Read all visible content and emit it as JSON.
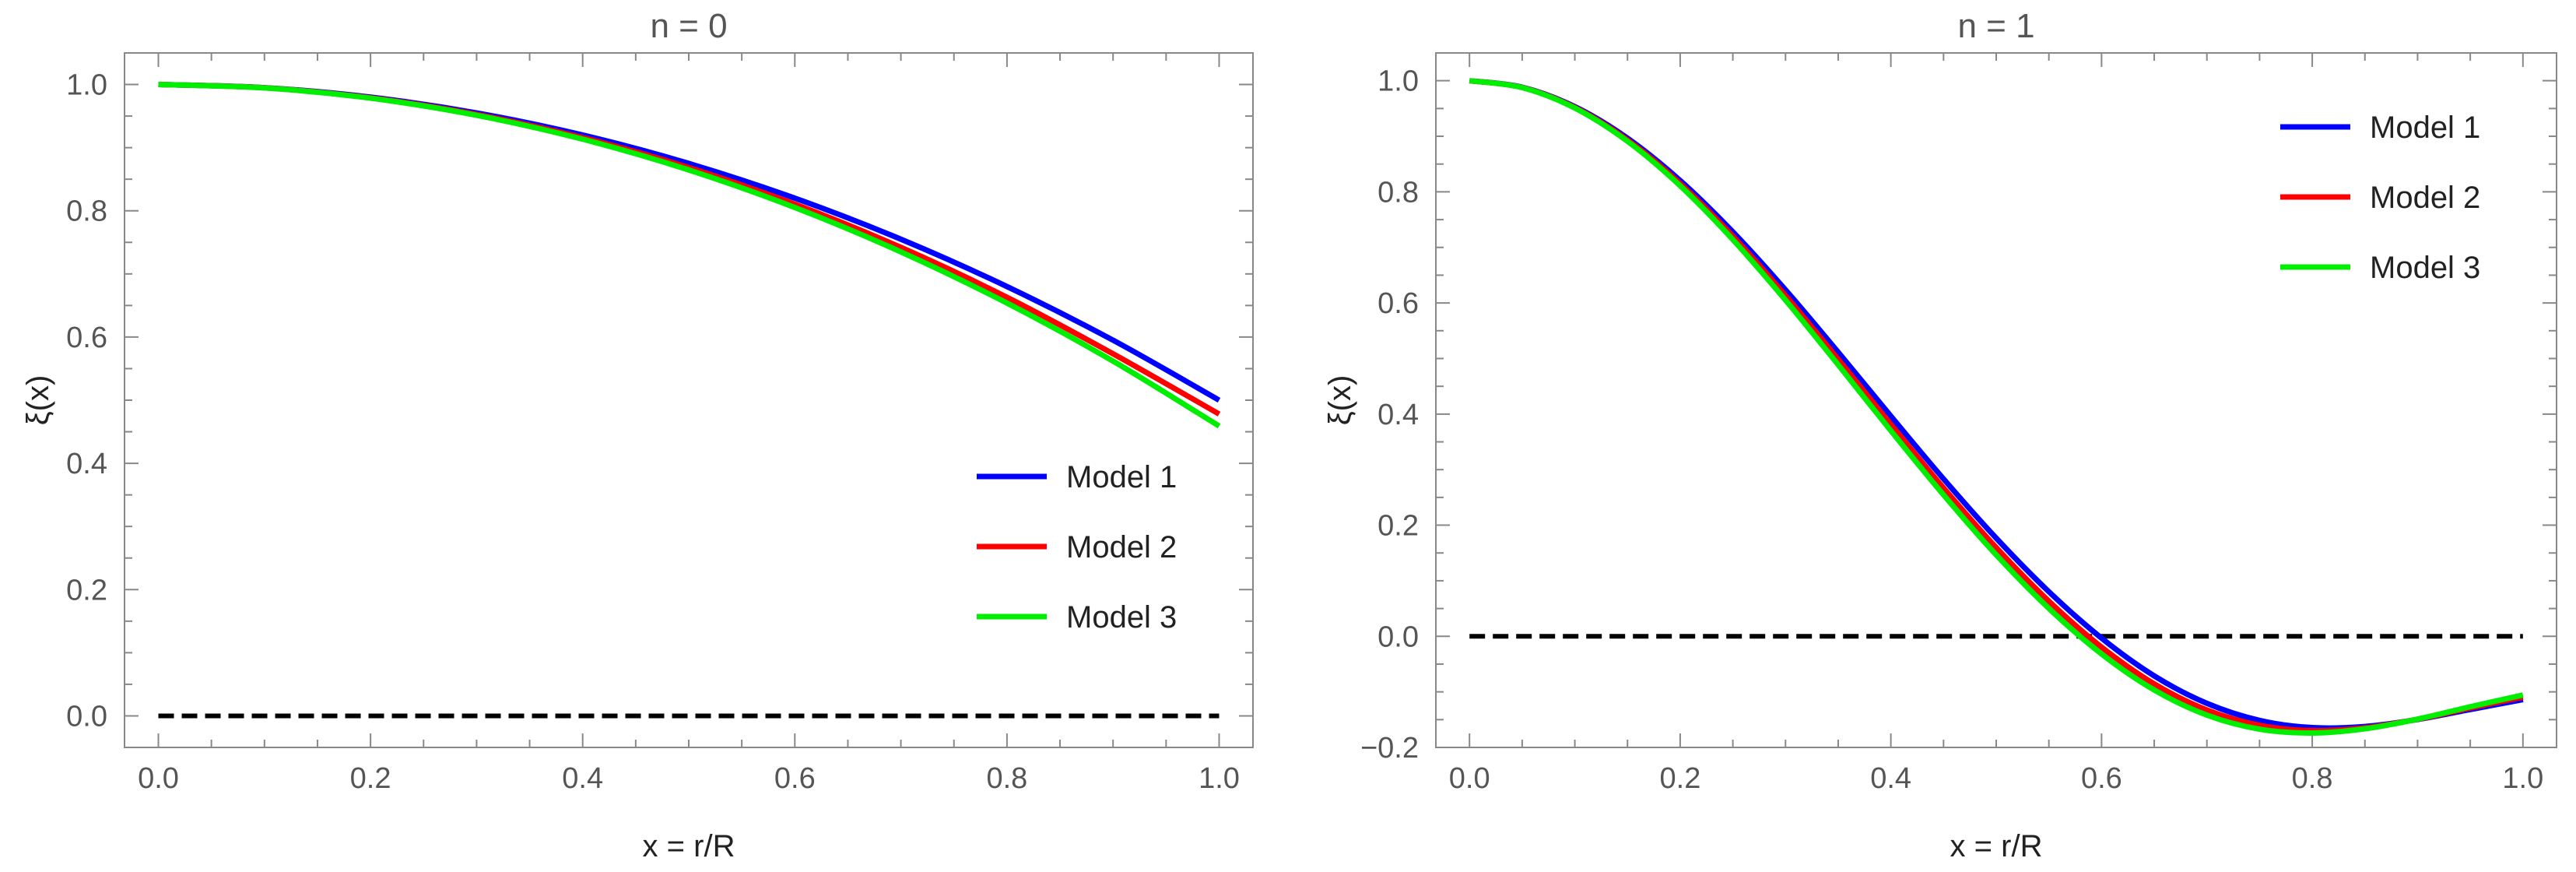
{
  "chart_data": [
    {
      "type": "line",
      "title": "n = 0",
      "xlabel": "x = r/R",
      "ylabel": "ξ(x)",
      "xlim": [
        0,
        1
      ],
      "ylim": [
        -0.05,
        1.05
      ],
      "xticks": [
        "0.0",
        "0.2",
        "0.4",
        "0.6",
        "0.8",
        "1.0"
      ],
      "yticks": [
        "0.0",
        "0.2",
        "0.4",
        "0.6",
        "0.8",
        "1.0"
      ],
      "legend_position": "bottom-right",
      "x": [
        0.0,
        0.1,
        0.2,
        0.3,
        0.4,
        0.5,
        0.6,
        0.7,
        0.8,
        0.9,
        1.0
      ],
      "series": [
        {
          "name": "Model 1",
          "color": "#0000ff",
          "values": [
            1.0,
            0.995,
            0.98,
            0.955,
            0.92,
            0.875,
            0.82,
            0.755,
            0.68,
            0.595,
            0.5
          ]
        },
        {
          "name": "Model 2",
          "color": "#ff0000",
          "values": [
            1.0,
            0.9948,
            0.979,
            0.9527,
            0.9159,
            0.8685,
            0.8105,
            0.742,
            0.663,
            0.5735,
            0.478
          ]
        },
        {
          "name": "Model 3",
          "color": "#00ee00",
          "values": [
            1.0,
            0.9946,
            0.9784,
            0.9513,
            0.9134,
            0.8647,
            0.8052,
            0.7349,
            0.6538,
            0.5619,
            0.459
          ]
        }
      ],
      "reference_line": {
        "y": 0.0,
        "style": "dashed",
        "color": "#000000"
      }
    },
    {
      "type": "line",
      "title": "n = 1",
      "xlabel": "x = r/R",
      "ylabel": "ξ(x)",
      "xlim": [
        0,
        1
      ],
      "ylim": [
        -0.2,
        1.05
      ],
      "xticks": [
        "0.0",
        "0.2",
        "0.4",
        "0.6",
        "0.8",
        "1.0"
      ],
      "yticks": [
        "−0.2",
        "0.0",
        "0.2",
        "0.4",
        "0.6",
        "0.8",
        "1.0"
      ],
      "legend_position": "top-right",
      "x": [
        0.0,
        0.05,
        0.1,
        0.15,
        0.2,
        0.25,
        0.3,
        0.35,
        0.4,
        0.45,
        0.5,
        0.55,
        0.6,
        0.65,
        0.7,
        0.75,
        0.8,
        0.85,
        0.9,
        0.95,
        1.0
      ],
      "series": [
        {
          "name": "Model 1",
          "color": "#0000ff",
          "values": [
            1.0,
            0.9883,
            0.9533,
            0.8965,
            0.8203,
            0.728,
            0.6236,
            0.5114,
            0.3963,
            0.2833,
            0.1767,
            0.0803,
            -0.0033,
            -0.0712,
            -0.1207,
            -0.1514,
            -0.1643,
            -0.1623,
            -0.1497,
            -0.1318,
            -0.1139
          ]
        },
        {
          "name": "Model 2",
          "color": "#ff0000",
          "values": [
            1.0,
            0.9879,
            0.9519,
            0.8934,
            0.815,
            0.7202,
            0.6132,
            0.4986,
            0.3815,
            0.2671,
            0.1597,
            0.0633,
            -0.0194,
            -0.0856,
            -0.1326,
            -0.1602,
            -0.1698,
            -0.1646,
            -0.1493,
            -0.129,
            -0.1093
          ]
        },
        {
          "name": "Model 3",
          "color": "#00ee00",
          "values": [
            1.0,
            0.9876,
            0.9508,
            0.891,
            0.8109,
            0.7141,
            0.6051,
            0.4887,
            0.37,
            0.2546,
            0.1466,
            0.0503,
            -0.0318,
            -0.0966,
            -0.1418,
            -0.1671,
            -0.174,
            -0.1664,
            -0.149,
            -0.1268,
            -0.1057
          ]
        }
      ],
      "reference_line": {
        "y": 0.0,
        "style": "dashed",
        "color": "#000000"
      }
    }
  ]
}
